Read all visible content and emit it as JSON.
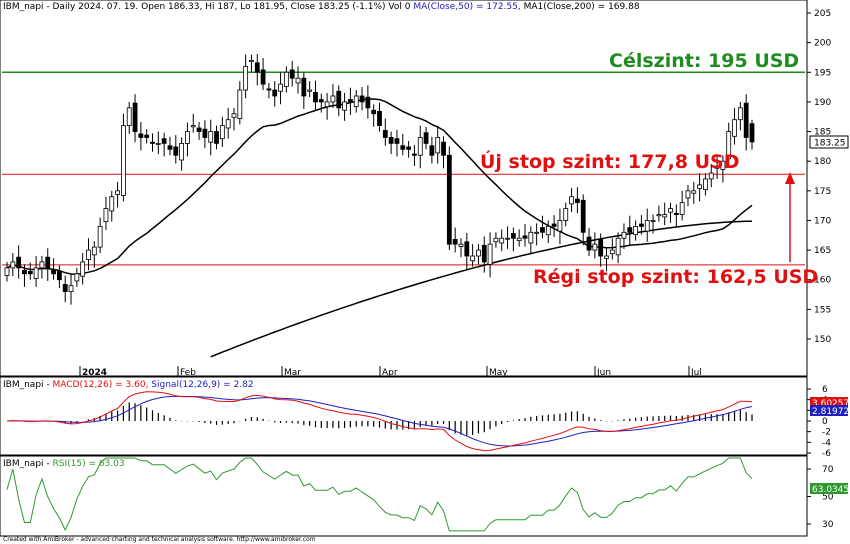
{
  "header": {
    "symbol": "IBM_napi",
    "info_text": " - Daily 2024. 07. 19. Open 186.33, Hi 187, Lo 181.95, Close 183.25 (-1.1%) Vol 0 ",
    "ma50_text": "MA(Close,50) = 172.55,",
    "ma200_text": " MA1(Close,200) = 169.88"
  },
  "annotations": {
    "target": "Célszint: 195 USD",
    "new_stop": "Új stop szint: 177,8 USD",
    "old_stop": "Régi stop szint: 162,5 USD"
  },
  "price_badge": "183.25",
  "macd_header": {
    "prefix": "IBM_napi - ",
    "macd": "MACD(12,26) = 3.60,",
    "signal": " Signal(12,26,9) = 2.82"
  },
  "macd_badges": {
    "macd": "3.60257",
    "signal": "2.81972"
  },
  "rsi_header": {
    "prefix": "IBM_napi - ",
    "rsi": "RSI(15) = 63.03"
  },
  "rsi_badge": "63.0345",
  "footer": "Created with AmiBroker - advanced charting and technical analysis software. http://www.amibroker.com",
  "colors": {
    "target_line": "#1e8c1e",
    "stop_lines": "#e01010",
    "up_candle": "#ffffff",
    "down_candle": "#000000",
    "macd_line": "#e01010",
    "signal_line": "#2020c0",
    "rsi_line": "#2e9a2e",
    "ma_lines": "#000000"
  },
  "chart_data": [
    {
      "type": "candlestick",
      "title": "IBM_napi - Daily",
      "x_labels": [
        "2024",
        "Feb",
        "Mar",
        "Apr",
        "May",
        "Jun",
        "Jul"
      ],
      "y_ticks": [
        150,
        155,
        160,
        165,
        170,
        175,
        180,
        185,
        190,
        195,
        200,
        205
      ],
      "ylim": [
        145,
        207
      ],
      "grid": false,
      "horizontal_lines": [
        {
          "name": "Célszint",
          "value": 195
        },
        {
          "name": "Új stop szint",
          "value": 177.8
        },
        {
          "name": "Régi stop szint",
          "value": 162.5
        }
      ],
      "last_bar": {
        "date": "2024. 07. 19.",
        "open": 186.33,
        "high": 187,
        "low": 181.95,
        "close": 183.25
      },
      "closes": [
        162,
        163,
        162,
        161,
        161,
        162,
        163,
        162,
        161,
        160,
        158,
        159,
        161,
        163,
        165,
        165.5,
        169,
        172,
        174,
        175,
        186,
        189,
        185,
        184,
        184,
        183,
        183,
        183,
        182,
        181,
        183,
        185,
        186,
        185,
        184,
        185,
        183,
        186,
        187,
        188,
        192,
        196,
        197,
        195,
        193,
        192,
        191,
        193,
        195,
        194,
        194,
        191,
        192,
        190,
        190,
        190,
        191,
        189,
        190,
        190,
        191,
        190,
        189,
        188,
        186,
        184,
        183,
        183,
        182,
        182,
        181,
        184,
        183,
        181,
        184,
        181,
        166,
        166,
        166,
        164,
        164,
        165,
        163,
        166,
        167,
        167,
        167,
        167,
        167,
        167,
        168,
        168,
        168,
        169,
        169,
        170,
        172,
        174,
        173,
        168,
        165,
        166,
        164,
        164,
        165,
        167,
        168,
        168,
        169,
        169,
        170,
        170,
        171,
        171,
        172,
        171,
        173,
        175,
        175,
        176,
        177,
        178,
        179,
        180,
        185,
        187,
        189,
        184,
        183.25
      ],
      "ma50_end": 172.55,
      "ma200_end": 169.88
    },
    {
      "type": "line",
      "title": "MACD(12,26) = 3.60, Signal(12,26,9) = 2.82",
      "y_ticks": [
        6,
        4,
        2,
        0,
        -2,
        -4,
        -6
      ],
      "series": [
        {
          "name": "MACD(12,26)",
          "last": 3.60257
        },
        {
          "name": "Signal(12,26,9)",
          "last": 2.81972
        }
      ]
    },
    {
      "type": "line",
      "title": "RSI(15) = 63.03",
      "y_ticks": [
        70,
        50,
        30
      ],
      "series": [
        {
          "name": "RSI(15)",
          "last": 63.0345
        }
      ]
    }
  ]
}
